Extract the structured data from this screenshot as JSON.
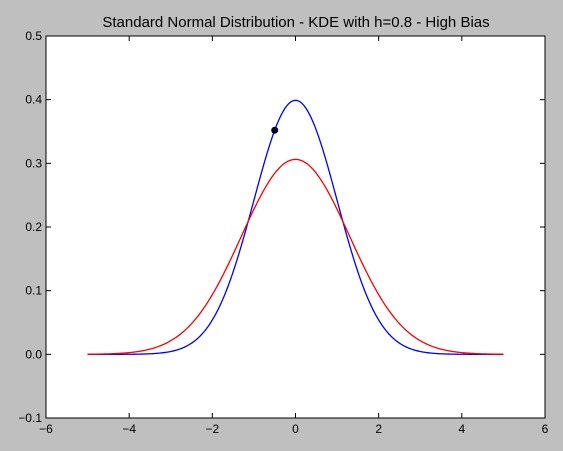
{
  "chart_data": {
    "type": "line",
    "title": "Standard Normal Distribution - KDE with h=0.8 - High Bias",
    "xlabel": "",
    "ylabel": "",
    "xlim": [
      -6,
      6
    ],
    "ylim": [
      -0.1,
      0.5
    ],
    "xticks": [
      -6,
      -4,
      -2,
      0,
      2,
      4,
      6
    ],
    "xtick_labels": [
      "−6",
      "−4",
      "−2",
      "0",
      "2",
      "4",
      "6"
    ],
    "yticks": [
      -0.1,
      0.0,
      0.1,
      0.2,
      0.3,
      0.4,
      0.5
    ],
    "ytick_labels": [
      "−0.1",
      "0.0",
      "0.1",
      "0.2",
      "0.3",
      "0.4",
      "0.5"
    ],
    "grid": false,
    "legend": "none",
    "x_range": [
      -5,
      5
    ],
    "series": [
      {
        "kind": "true-density",
        "color": "#0000ff",
        "x": [
          -5,
          -4,
          -3,
          -2.5,
          -2,
          -1.5,
          -1,
          -0.5,
          0,
          0.5,
          1,
          1.5,
          2,
          2.5,
          3,
          4,
          5
        ],
        "y": [
          0.0,
          0.0001,
          0.0044,
          0.0175,
          0.054,
          0.1295,
          0.242,
          0.352,
          0.399,
          0.352,
          0.242,
          0.1295,
          0.054,
          0.0175,
          0.0044,
          0.0001,
          0.0
        ]
      },
      {
        "kind": "kde-estimate",
        "color": "#ff0000",
        "x": [
          -5,
          -4,
          -3,
          -2.5,
          -2,
          -1.5,
          -1,
          -0.5,
          0,
          0.5,
          1,
          1.5,
          2,
          2.5,
          3,
          4,
          5
        ],
        "y": [
          0.0003,
          0.0021,
          0.0205,
          0.0448,
          0.0836,
          0.1351,
          0.1935,
          0.2436,
          0.3062,
          0.2436,
          0.1935,
          0.1351,
          0.0836,
          0.0448,
          0.0205,
          0.0021,
          0.0003
        ]
      }
    ],
    "marker": {
      "x": -0.5,
      "y": 0.352,
      "color": "#000033"
    }
  }
}
